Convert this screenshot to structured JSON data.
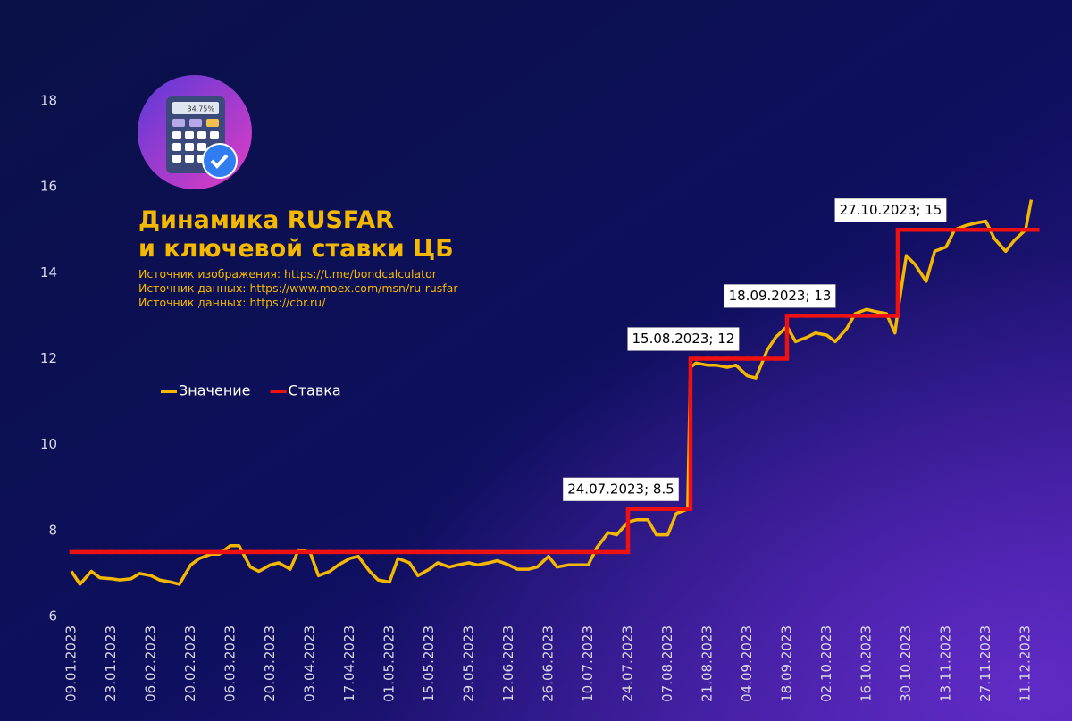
{
  "chart_data": {
    "type": "line",
    "title": [
      "Динамика RUSFAR",
      "и ключевой ставки ЦБ"
    ],
    "subtitle": [
      "Источник изображения: https://t.me/bondcalculator",
      "Источник данных: https://www.moex.com/msn/ru-rusfar",
      "Источник данных: https://cbr.ru/"
    ],
    "icon_text": "34.75%",
    "x": [
      "09.01.2023",
      "12.01.2023",
      "16.01.2023",
      "19.01.2023",
      "23.01.2023",
      "26.01.2023",
      "30.01.2023",
      "02.02.2023",
      "06.02.2023",
      "09.02.2023",
      "13.02.2023",
      "16.02.2023",
      "20.02.2023",
      "23.02.2023",
      "27.02.2023",
      "02.03.2023",
      "06.03.2023",
      "09.03.2023",
      "13.03.2023",
      "16.03.2023",
      "20.03.2023",
      "23.03.2023",
      "27.03.2023",
      "30.03.2023",
      "03.04.2023",
      "06.04.2023",
      "10.04.2023",
      "13.04.2023",
      "17.04.2023",
      "20.04.2023",
      "24.04.2023",
      "27.04.2023",
      "01.05.2023",
      "04.05.2023",
      "08.05.2023",
      "11.05.2023",
      "15.05.2023",
      "18.05.2023",
      "22.05.2023",
      "25.05.2023",
      "29.05.2023",
      "01.06.2023",
      "05.06.2023",
      "08.06.2023",
      "12.06.2023",
      "15.06.2023",
      "19.06.2023",
      "22.06.2023",
      "26.06.2023",
      "29.06.2023",
      "03.07.2023",
      "06.07.2023",
      "10.07.2023",
      "13.07.2023",
      "17.07.2023",
      "20.07.2023",
      "24.07.2023",
      "27.07.2023",
      "31.07.2023",
      "03.08.2023",
      "07.08.2023",
      "10.08.2023",
      "14.08.2023",
      "15.08.2023",
      "17.08.2023",
      "21.08.2023",
      "24.08.2023",
      "28.08.2023",
      "31.08.2023",
      "04.09.2023",
      "07.09.2023",
      "11.09.2023",
      "14.09.2023",
      "18.09.2023",
      "21.09.2023",
      "25.09.2023",
      "28.09.2023",
      "02.10.2023",
      "05.10.2023",
      "09.10.2023",
      "12.10.2023",
      "16.10.2023",
      "19.10.2023",
      "23.10.2023",
      "26.10.2023",
      "27.10.2023",
      "30.10.2023",
      "02.11.2023",
      "06.11.2023",
      "09.11.2023",
      "13.11.2023",
      "16.11.2023",
      "20.11.2023",
      "23.11.2023",
      "27.11.2023",
      "30.11.2023",
      "04.12.2023",
      "07.12.2023",
      "11.12.2023",
      "13.12.2023"
    ],
    "series": [
      {
        "name": "Значение",
        "color": "#f5b800",
        "values": [
          7.05,
          6.75,
          7.05,
          6.9,
          6.88,
          6.85,
          6.88,
          7.0,
          6.95,
          6.85,
          6.8,
          6.75,
          7.2,
          7.35,
          7.45,
          7.45,
          7.65,
          7.65,
          7.15,
          7.05,
          7.2,
          7.25,
          7.1,
          7.55,
          7.5,
          6.95,
          7.05,
          7.2,
          7.35,
          7.4,
          7.05,
          6.85,
          6.8,
          7.35,
          7.25,
          6.95,
          7.1,
          7.25,
          7.15,
          7.2,
          7.25,
          7.2,
          7.25,
          7.3,
          7.2,
          7.1,
          7.1,
          7.15,
          7.4,
          7.15,
          7.2,
          7.2,
          7.2,
          7.6,
          7.95,
          7.9,
          8.2,
          8.25,
          8.25,
          7.9,
          7.9,
          8.4,
          8.5,
          11.8,
          11.9,
          11.85,
          11.85,
          11.8,
          11.85,
          11.6,
          11.55,
          12.2,
          12.5,
          12.75,
          12.4,
          12.5,
          12.6,
          12.55,
          12.4,
          12.7,
          13.05,
          13.15,
          13.1,
          13.05,
          12.6,
          13.1,
          14.4,
          14.2,
          13.8,
          14.5,
          14.6,
          15.0,
          15.1,
          15.15,
          15.2,
          14.8,
          14.5,
          14.75,
          15.0,
          15.7
        ]
      },
      {
        "name": "Ставка",
        "color": "#ee1111",
        "step": true,
        "values": [
          7.5,
          7.5,
          7.5,
          7.5,
          7.5,
          7.5,
          7.5,
          7.5,
          7.5,
          7.5,
          7.5,
          7.5,
          7.5,
          7.5,
          7.5,
          7.5,
          7.5,
          7.5,
          7.5,
          7.5,
          7.5,
          7.5,
          7.5,
          7.5,
          7.5,
          7.5,
          7.5,
          7.5,
          7.5,
          7.5,
          7.5,
          7.5,
          7.5,
          7.5,
          7.5,
          7.5,
          7.5,
          7.5,
          7.5,
          7.5,
          7.5,
          7.5,
          7.5,
          7.5,
          7.5,
          7.5,
          7.5,
          7.5,
          7.5,
          7.5,
          7.5,
          7.5,
          7.5,
          7.5,
          7.5,
          7.5,
          8.5,
          8.5,
          8.5,
          8.5,
          8.5,
          8.5,
          8.5,
          12,
          12,
          12,
          12,
          12,
          12,
          12,
          12,
          12,
          12,
          13,
          13,
          13,
          13,
          13,
          13,
          13,
          13,
          13,
          13,
          13,
          13,
          15,
          15,
          15,
          15,
          15,
          15,
          15,
          15,
          15,
          15,
          15,
          15,
          15,
          15,
          15
        ]
      }
    ],
    "annotations": [
      {
        "text": "24.07.2023; 8.5",
        "x": "24.07.2023",
        "y": 8.5
      },
      {
        "text": "15.08.2023; 12",
        "x": "15.08.2023",
        "y": 12
      },
      {
        "text": "18.09.2023; 13",
        "x": "18.09.2023",
        "y": 13
      },
      {
        "text": "27.10.2023; 15",
        "x": "27.10.2023",
        "y": 15
      }
    ],
    "xlim": [
      "09.01.2023",
      "11.12.2023"
    ],
    "xticks": [
      "09.01.2023",
      "23.01.2023",
      "06.02.2023",
      "20.02.2023",
      "06.03.2023",
      "20.03.2023",
      "03.04.2023",
      "17.04.2023",
      "01.05.2023",
      "15.05.2023",
      "29.05.2023",
      "12.06.2023",
      "26.06.2023",
      "10.07.2023",
      "24.07.2023",
      "07.08.2023",
      "21.08.2023",
      "04.09.2023",
      "18.09.2023",
      "02.10.2023",
      "16.10.2023",
      "30.10.2023",
      "13.11.2023",
      "27.11.2023",
      "11.12.2023"
    ],
    "ylim": [
      6,
      18
    ],
    "yticks": [
      6,
      8,
      10,
      12,
      14,
      16,
      18
    ],
    "grid": false
  }
}
